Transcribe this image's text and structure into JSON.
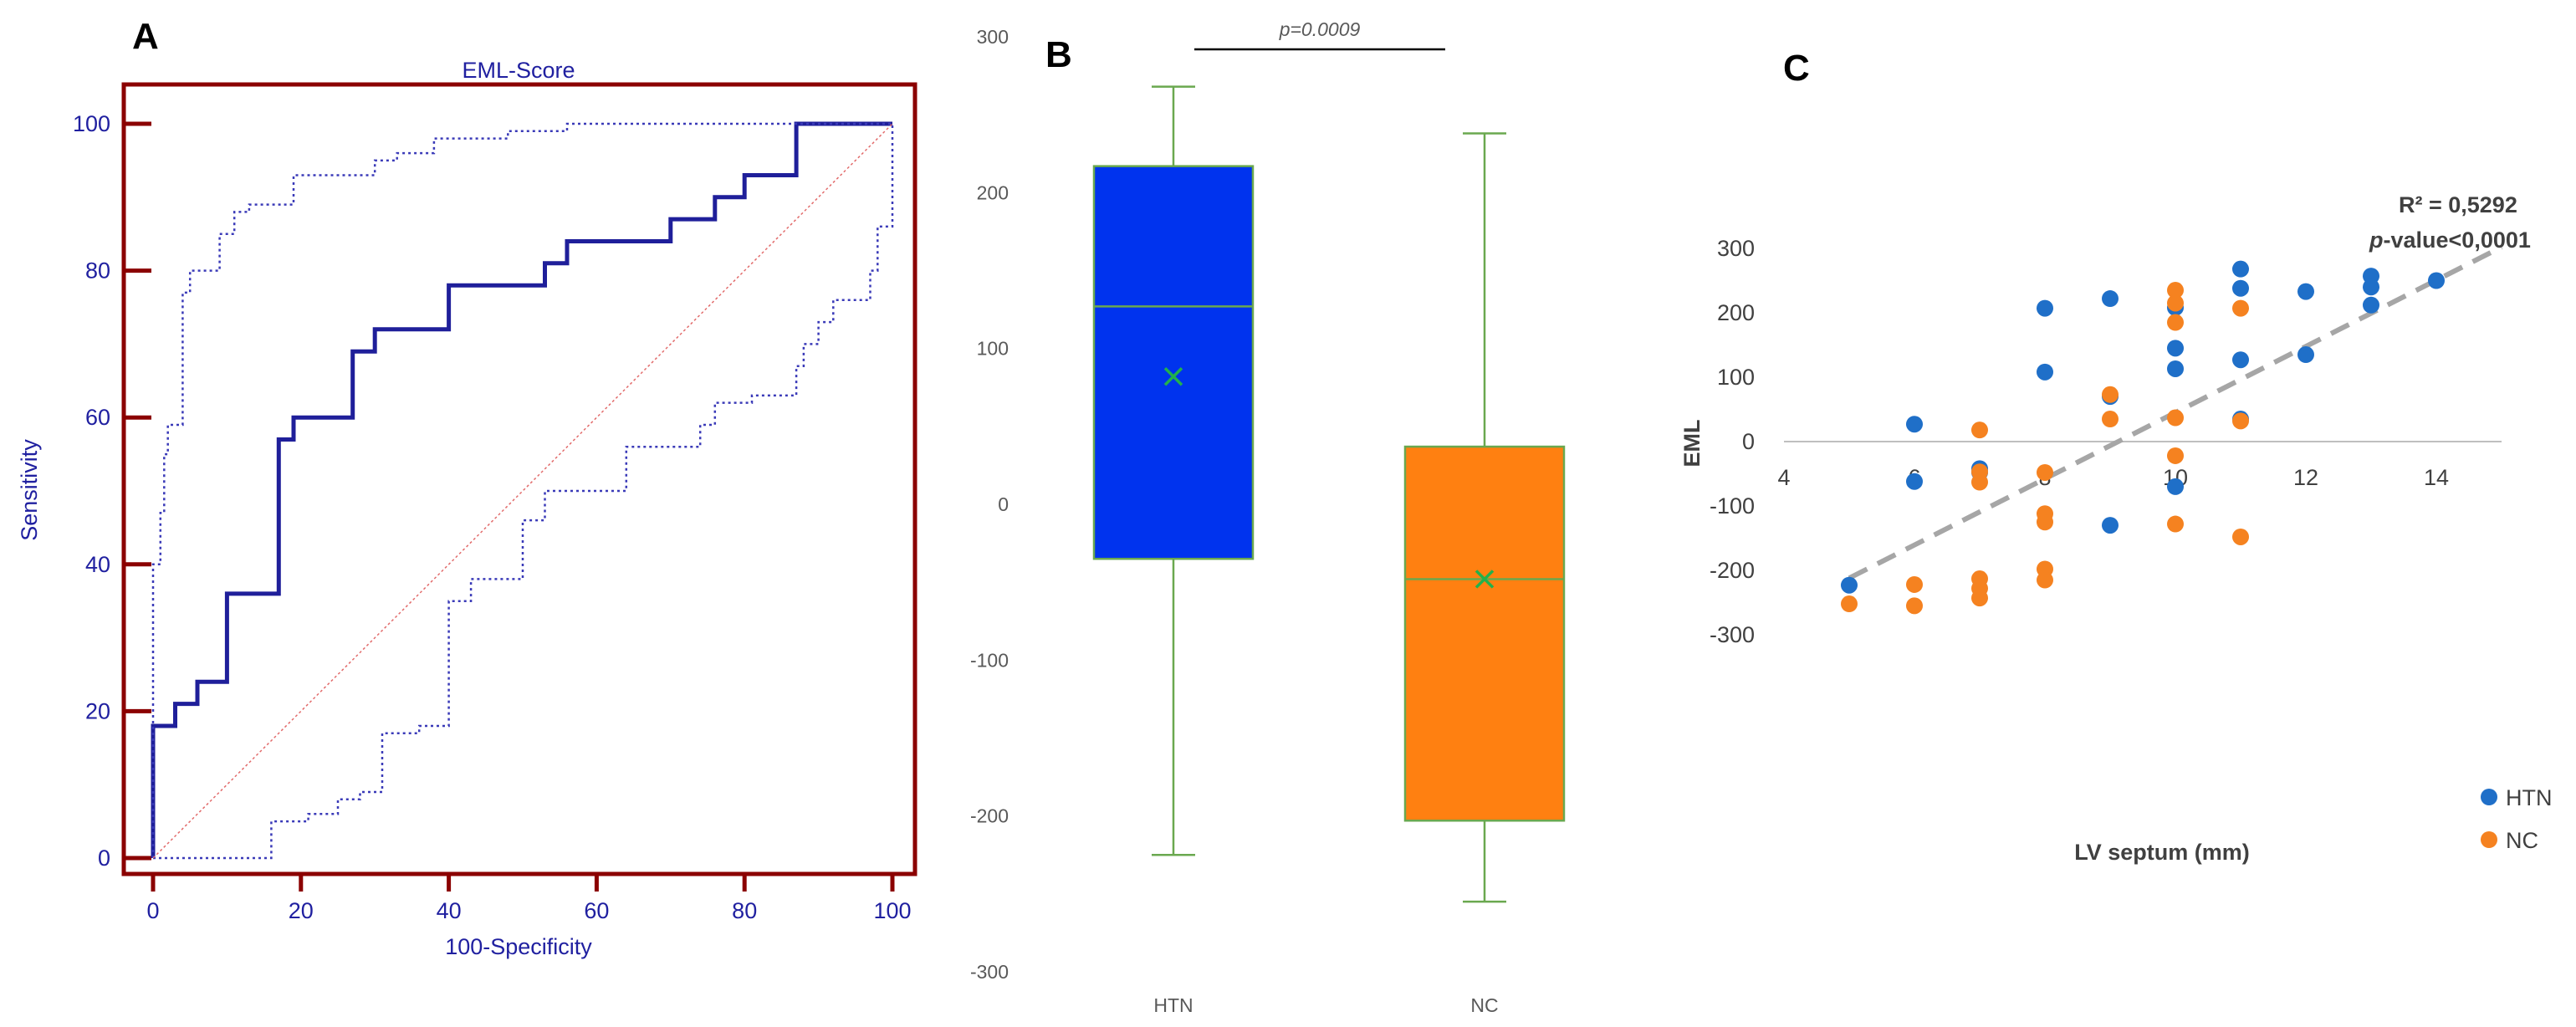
{
  "colors": {
    "roc_frame": "#8b0000",
    "roc_line": "#1f1f9a",
    "roc_text": "#2020a0",
    "htn_box": "#0033ee",
    "nc_box": "#ff8011",
    "whisker": "#6aa84f",
    "htn_point": "#1f6fc8",
    "nc_point": "#f58220",
    "trend": "#a6a6a6"
  },
  "chart_data": [
    {
      "panel": "A",
      "type": "line",
      "title": "EML-Score",
      "xlabel": "100-Specificity",
      "ylabel": "Sensitivity",
      "xlim": [
        0,
        100
      ],
      "ylim": [
        0,
        100
      ],
      "xticks": [
        "0",
        "20",
        "40",
        "60",
        "80",
        "100"
      ],
      "yticks": [
        "0",
        "20",
        "40",
        "60",
        "80",
        "100"
      ],
      "series": [
        {
          "name": "ROC curve",
          "style": "step-solid",
          "points": [
            [
              0,
              0
            ],
            [
              0,
              18
            ],
            [
              3,
              18
            ],
            [
              3,
              21
            ],
            [
              6,
              21
            ],
            [
              6,
              24
            ],
            [
              10,
              24
            ],
            [
              10,
              36
            ],
            [
              17,
              36
            ],
            [
              17,
              57
            ],
            [
              19,
              57
            ],
            [
              19,
              60
            ],
            [
              27,
              60
            ],
            [
              27,
              69
            ],
            [
              30,
              69
            ],
            [
              30,
              72
            ],
            [
              40,
              72
            ],
            [
              40,
              78
            ],
            [
              53,
              78
            ],
            [
              53,
              81
            ],
            [
              56,
              81
            ],
            [
              56,
              84
            ],
            [
              70,
              84
            ],
            [
              70,
              87
            ],
            [
              76,
              87
            ],
            [
              76,
              90
            ],
            [
              80,
              90
            ],
            [
              80,
              93
            ],
            [
              87,
              93
            ],
            [
              87,
              100
            ],
            [
              100,
              100
            ]
          ]
        },
        {
          "name": "Upper 95% CI",
          "style": "step-dotted",
          "points": [
            [
              0,
              0
            ],
            [
              0,
              40
            ],
            [
              1,
              40
            ],
            [
              1,
              47
            ],
            [
              1.5,
              47
            ],
            [
              1.5,
              55
            ],
            [
              2,
              55
            ],
            [
              2,
              59
            ],
            [
              4,
              59
            ],
            [
              4,
              77
            ],
            [
              5,
              77
            ],
            [
              5,
              80
            ],
            [
              9,
              80
            ],
            [
              9,
              85
            ],
            [
              11,
              85
            ],
            [
              11,
              88
            ],
            [
              13,
              88
            ],
            [
              13,
              89
            ],
            [
              19,
              89
            ],
            [
              19,
              93
            ],
            [
              30,
              93
            ],
            [
              30,
              95
            ],
            [
              33,
              95
            ],
            [
              33,
              96
            ],
            [
              38,
              96
            ],
            [
              38,
              98
            ],
            [
              48,
              98
            ],
            [
              48,
              99
            ],
            [
              56,
              99
            ],
            [
              56,
              100
            ],
            [
              100,
              100
            ]
          ]
        },
        {
          "name": "Lower 95% CI",
          "style": "step-dotted",
          "points": [
            [
              0,
              0
            ],
            [
              16,
              0
            ],
            [
              16,
              5
            ],
            [
              21,
              5
            ],
            [
              21,
              6
            ],
            [
              25,
              6
            ],
            [
              25,
              8
            ],
            [
              28,
              8
            ],
            [
              28,
              9
            ],
            [
              31,
              9
            ],
            [
              31,
              17
            ],
            [
              36,
              17
            ],
            [
              36,
              18
            ],
            [
              40,
              18
            ],
            [
              40,
              35
            ],
            [
              43,
              35
            ],
            [
              43,
              38
            ],
            [
              50,
              38
            ],
            [
              50,
              46
            ],
            [
              53,
              46
            ],
            [
              53,
              50
            ],
            [
              64,
              50
            ],
            [
              64,
              56
            ],
            [
              74,
              56
            ],
            [
              74,
              59
            ],
            [
              76,
              59
            ],
            [
              76,
              62
            ],
            [
              81,
              62
            ],
            [
              81,
              63
            ],
            [
              87,
              63
            ],
            [
              87,
              67
            ],
            [
              88,
              67
            ],
            [
              88,
              70
            ],
            [
              90,
              70
            ],
            [
              90,
              73
            ],
            [
              92,
              73
            ],
            [
              92,
              76
            ],
            [
              97,
              76
            ],
            [
              97,
              80
            ],
            [
              98,
              80
            ],
            [
              98,
              86
            ],
            [
              100,
              86
            ],
            [
              100,
              100
            ]
          ]
        },
        {
          "name": "Reference line",
          "style": "diagonal",
          "points": [
            [
              0,
              0
            ],
            [
              100,
              100
            ]
          ]
        }
      ]
    },
    {
      "panel": "B",
      "type": "box",
      "categories": [
        "HTN",
        "NC"
      ],
      "ylim": [
        -300,
        300
      ],
      "yticks": [
        "300",
        "200",
        "100",
        "0",
        "-100",
        "-200",
        "-300"
      ],
      "boxes": [
        {
          "name": "HTN",
          "min": -225,
          "q1": -35,
          "median": 127,
          "q3": 217,
          "max": 268,
          "mean": 82
        },
        {
          "name": "NC",
          "min": -255,
          "q1": -203,
          "median": -48,
          "q3": 37,
          "max": 238,
          "mean": -48
        }
      ],
      "annotation": "p=0.0009"
    },
    {
      "panel": "C",
      "type": "scatter",
      "xlabel": "LV septum (mm)",
      "ylabel": "EML",
      "xlim": [
        4,
        15
      ],
      "ylim": [
        -300,
        300
      ],
      "xticks": [
        "4",
        "6",
        "8",
        "10",
        "12",
        "14"
      ],
      "yticks": [
        "300",
        "200",
        "100",
        "0",
        "-100",
        "-200",
        "-300"
      ],
      "legend": [
        "HTN",
        "NC"
      ],
      "series": [
        {
          "name": "HTN",
          "points": [
            [
              5,
              -223
            ],
            [
              6,
              27
            ],
            [
              6,
              -62
            ],
            [
              7,
              -42
            ],
            [
              7,
              -48
            ],
            [
              8,
              207
            ],
            [
              8,
              108
            ],
            [
              9,
              222
            ],
            [
              9,
              -130
            ],
            [
              9,
              70
            ],
            [
              10,
              208
            ],
            [
              10,
              145
            ],
            [
              10,
              113
            ],
            [
              10,
              -70
            ],
            [
              11,
              268
            ],
            [
              11,
              238
            ],
            [
              11,
              127
            ],
            [
              11,
              35
            ],
            [
              12,
              233
            ],
            [
              12,
              135
            ],
            [
              13,
              257
            ],
            [
              13,
              240
            ],
            [
              13,
              212
            ],
            [
              14,
              250
            ]
          ]
        },
        {
          "name": "NC",
          "points": [
            [
              5,
              -252
            ],
            [
              6,
              -222
            ],
            [
              6,
              -255
            ],
            [
              7,
              18
            ],
            [
              7,
              -47
            ],
            [
              7,
              -63
            ],
            [
              7,
              -213
            ],
            [
              7,
              -228
            ],
            [
              7,
              -243
            ],
            [
              8,
              -48
            ],
            [
              8,
              -112
            ],
            [
              8,
              -125
            ],
            [
              8,
              -198
            ],
            [
              8,
              -215
            ],
            [
              9,
              73
            ],
            [
              9,
              35
            ],
            [
              10,
              235
            ],
            [
              10,
              215
            ],
            [
              10,
              185
            ],
            [
              10,
              37
            ],
            [
              10,
              -22
            ],
            [
              10,
              -128
            ],
            [
              11,
              207
            ],
            [
              11,
              32
            ],
            [
              11,
              -148
            ]
          ]
        }
      ],
      "trendline": {
        "from": [
          5,
          -212
        ],
        "to": [
          15,
          302
        ]
      },
      "stats": {
        "r2": "R² = 0,5292",
        "p_prefix": "p",
        "p_rest": "-value<0,0001"
      }
    }
  ],
  "panels": {
    "a": "A",
    "b": "B",
    "c": "C"
  }
}
